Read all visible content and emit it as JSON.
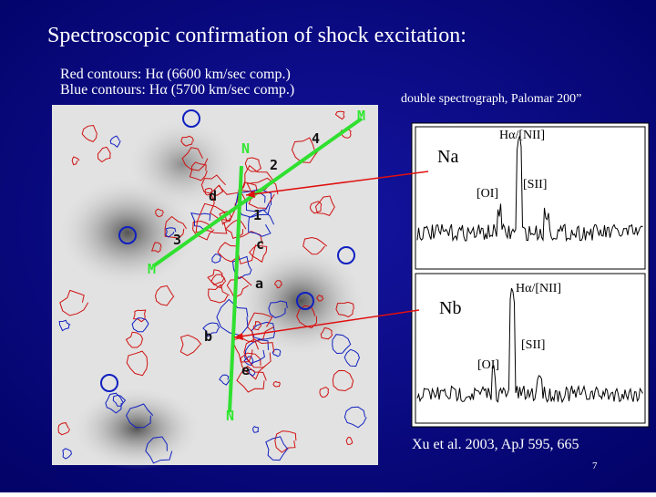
{
  "header": {
    "title": "Spectroscopic confirmation of shock excitation:"
  },
  "legend": {
    "red": "Red contours: Hα  (6600 km/sec comp.)",
    "blue": "Blue contours: Hα  (5700 km/sec comp.)"
  },
  "image": {
    "labels": [
      "M",
      "4",
      "2",
      "N",
      "d",
      "1",
      "3",
      "c",
      "M",
      "a",
      "b",
      "e",
      "N"
    ]
  },
  "spectra": {
    "caption": "double spectrograph, Palomar 200”",
    "panels": [
      {
        "line": "Hα/[NII]",
        "name": "Na",
        "oi": "[OI]",
        "sii": "[SII]"
      },
      {
        "line": "Hα/[NII]",
        "name": "Nb",
        "sii": "[SII]",
        "oi": "[OI]"
      }
    ]
  },
  "footer": {
    "citation": "Xu et al. 2003, ApJ 595, 665",
    "page": "7"
  }
}
